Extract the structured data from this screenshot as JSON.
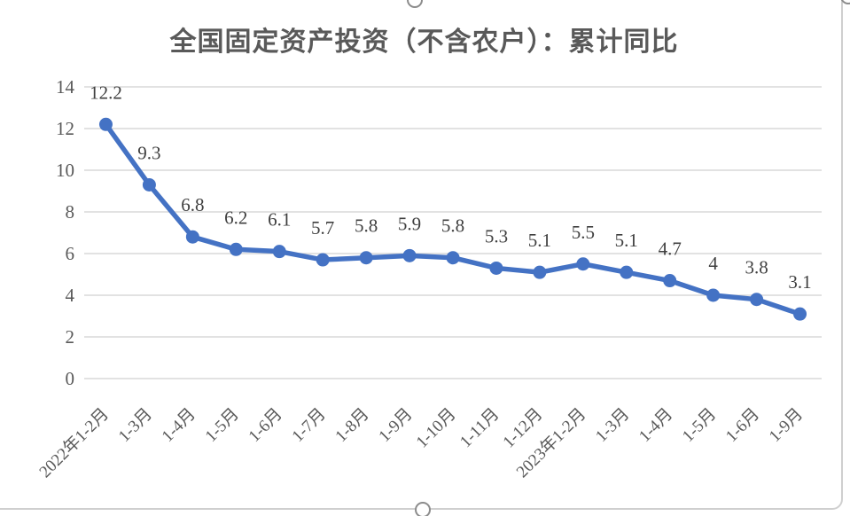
{
  "chart_data": {
    "type": "line",
    "title": "全国固定资产投资（不含农户）：累计同比",
    "categories": [
      "2022年1-2月",
      "1-3月",
      "1-4月",
      "1-5月",
      "1-6月",
      "1-7月",
      "1-8月",
      "1-9月",
      "1-10月",
      "1-11月",
      "1-12月",
      "2023年1-2月",
      "1-3月",
      "1-4月",
      "1-5月",
      "1-6月",
      "1-9月"
    ],
    "series": [
      {
        "name": "全国固定资产投资（不含农户）：累计同比",
        "values": [
          12.2,
          9.3,
          6.8,
          6.2,
          6.1,
          5.7,
          5.8,
          5.9,
          5.8,
          5.3,
          5.1,
          5.5,
          5.1,
          4.7,
          4,
          3.8,
          3.1
        ],
        "data_labels": [
          "12.2",
          "9.3",
          "6.8",
          "6.2",
          "6.1",
          "5.7",
          "5.8",
          "5.9",
          "5.8",
          "5.3",
          "5.1",
          "5.5",
          "5.1",
          "4.7",
          "4",
          "3.8",
          "3.1"
        ]
      }
    ],
    "xlabel": "",
    "ylabel": "",
    "ylim": [
      0,
      14
    ],
    "yticks": [
      "0",
      "2",
      "4",
      "6",
      "8",
      "10",
      "12",
      "14"
    ],
    "grid": true,
    "legend": "none",
    "marker": "circle",
    "data_label_position": "above",
    "x_tick_rotation_deg": 45
  },
  "colors": {
    "line": "#4472C4",
    "marker": "#4472C4",
    "grid": "#D9D9D9",
    "axis_text": "#595959",
    "data_label_text": "#3F3F3F",
    "title_text": "#595959",
    "frame_border": "#CFCFCF",
    "handle_border": "#8C8C8C",
    "background": "#FFFFFF"
  }
}
